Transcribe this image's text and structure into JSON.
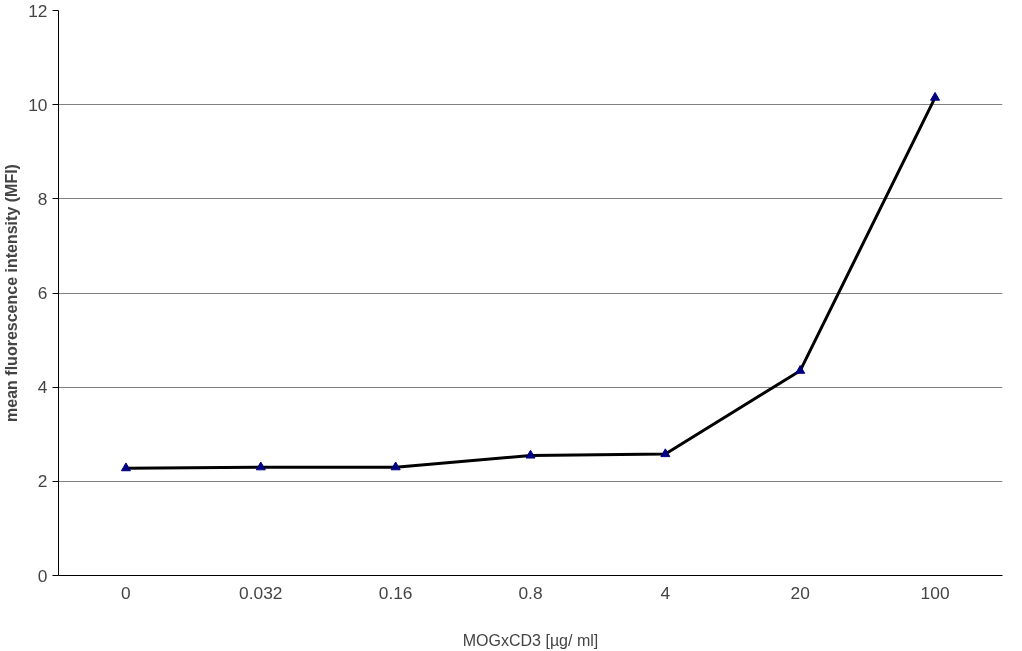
{
  "chart_data": {
    "type": "line",
    "xlabel": "MOGxCD3 [µg/ ml]",
    "ylabel": "mean fluorescence intensity (MFI)",
    "categories": [
      "0",
      "0.032",
      "0.16",
      "0.8",
      "4",
      "20",
      "100"
    ],
    "series": [
      {
        "color": "#000000",
        "values": [
          2.28,
          2.3,
          2.3,
          2.55,
          2.58,
          4.35,
          10.15
        ]
      }
    ],
    "marker": "triangle",
    "line_style": "solid",
    "ylim": [
      0,
      12
    ],
    "yticks": [
      0,
      2,
      4,
      6,
      8,
      10,
      12
    ],
    "grid": "y"
  }
}
